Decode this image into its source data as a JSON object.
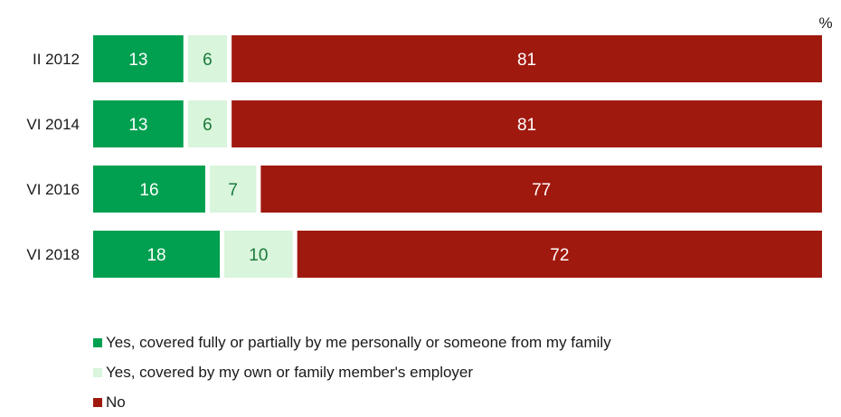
{
  "chart_data": {
    "type": "bar",
    "orientation": "horizontal",
    "stacked": true,
    "unit_label": "%",
    "categories": [
      "II 2012",
      "VI 2014",
      "VI 2016",
      "VI 2018"
    ],
    "series": [
      {
        "name": "Yes, covered fully or partially by me personally or someone from my family",
        "color": "#00a050",
        "label_color": "#ffffff",
        "values": [
          13,
          13,
          16,
          18
        ]
      },
      {
        "name": "Yes, covered by my own or family member's employer",
        "color": "#d9f5dc",
        "label_color": "#1a7a3a",
        "values": [
          6,
          6,
          7,
          10
        ]
      },
      {
        "name": "No",
        "color": "#a0190f",
        "label_color": "#ffffff",
        "values": [
          81,
          81,
          77,
          72
        ]
      }
    ],
    "xlim": [
      0,
      100
    ],
    "grid": false,
    "legend_position": "bottom-left"
  }
}
